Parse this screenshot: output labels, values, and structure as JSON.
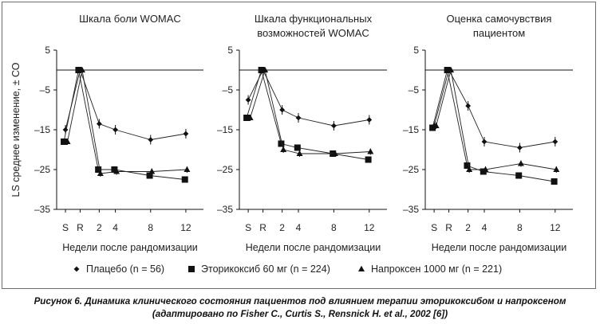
{
  "chart_data": [
    {
      "type": "line",
      "title_lines": [
        "Шкала боли WOMAC"
      ],
      "xlabel": "Недели после рандомизации",
      "ylabel": "LS среднее изменение, ± СО",
      "ylim": [
        -35,
        5
      ],
      "yticks": [
        "5",
        "–5",
        "–15",
        "–25",
        "–35"
      ],
      "xticks": [
        "S",
        "R",
        "2",
        "4",
        "8",
        "12"
      ],
      "reference_line_y": 0,
      "series": [
        {
          "key": "placebo",
          "marker": "diamond",
          "points": [
            {
              "x": "S",
              "y": -15
            },
            {
              "x": "R",
              "y": 0
            },
            {
              "x": "2",
              "y": -13.5
            },
            {
              "x": "4",
              "y": -15
            },
            {
              "x": "8",
              "y": -17.5
            },
            {
              "x": "12",
              "y": -16
            }
          ]
        },
        {
          "key": "etoricoxib",
          "marker": "square",
          "points": [
            {
              "x": "S",
              "y": -18
            },
            {
              "x": "R",
              "y": 0
            },
            {
              "x": "2",
              "y": -25
            },
            {
              "x": "4",
              "y": -25
            },
            {
              "x": "8",
              "y": -26.5
            },
            {
              "x": "12",
              "y": -27.5
            }
          ]
        },
        {
          "key": "naproxen",
          "marker": "triangle",
          "points": [
            {
              "x": "S",
              "y": -18
            },
            {
              "x": "R",
              "y": 0
            },
            {
              "x": "2",
              "y": -26
            },
            {
              "x": "4",
              "y": -25.5
            },
            {
              "x": "8",
              "y": -25.5
            },
            {
              "x": "12",
              "y": -25
            }
          ]
        }
      ]
    },
    {
      "type": "line",
      "title_lines": [
        "Шкала функциональных",
        "возможностей WOMAC"
      ],
      "xlabel": "Недели после рандомизации",
      "ylim": [
        -35,
        5
      ],
      "yticks": [
        "5",
        "–5",
        "–15",
        "–25",
        "–35"
      ],
      "xticks": [
        "S",
        "R",
        "2",
        "4",
        "8",
        "12"
      ],
      "reference_line_y": 0,
      "series": [
        {
          "key": "placebo",
          "marker": "diamond",
          "points": [
            {
              "x": "S",
              "y": -7.5
            },
            {
              "x": "R",
              "y": 0
            },
            {
              "x": "2",
              "y": -10
            },
            {
              "x": "4",
              "y": -12
            },
            {
              "x": "8",
              "y": -14
            },
            {
              "x": "12",
              "y": -12.5
            }
          ]
        },
        {
          "key": "etoricoxib",
          "marker": "square",
          "points": [
            {
              "x": "S",
              "y": -12
            },
            {
              "x": "R",
              "y": 0
            },
            {
              "x": "2",
              "y": -18.5
            },
            {
              "x": "4",
              "y": -19.5
            },
            {
              "x": "8",
              "y": -21
            },
            {
              "x": "12",
              "y": -22.5
            }
          ]
        },
        {
          "key": "naproxen",
          "marker": "triangle",
          "points": [
            {
              "x": "S",
              "y": -12
            },
            {
              "x": "R",
              "y": 0
            },
            {
              "x": "2",
              "y": -20
            },
            {
              "x": "4",
              "y": -21
            },
            {
              "x": "8",
              "y": -21
            },
            {
              "x": "12",
              "y": -20.5
            }
          ]
        }
      ]
    },
    {
      "type": "line",
      "title_lines": [
        "Оценка самочувствия",
        "пациентом"
      ],
      "xlabel": "Недели после рандомизации",
      "ylim": [
        -35,
        5
      ],
      "yticks": [
        "5",
        "–5",
        "–15",
        "–25",
        "–35"
      ],
      "xticks": [
        "S",
        "R",
        "2",
        "4",
        "8",
        "12"
      ],
      "reference_line_y": 0,
      "series": [
        {
          "key": "placebo",
          "marker": "diamond",
          "points": [
            {
              "x": "S",
              "y": -14
            },
            {
              "x": "R",
              "y": 0
            },
            {
              "x": "2",
              "y": -9
            },
            {
              "x": "4",
              "y": -18
            },
            {
              "x": "8",
              "y": -19.5
            },
            {
              "x": "12",
              "y": -18
            }
          ]
        },
        {
          "key": "etoricoxib",
          "marker": "square",
          "points": [
            {
              "x": "S",
              "y": -14.5
            },
            {
              "x": "R",
              "y": 0
            },
            {
              "x": "2",
              "y": -24
            },
            {
              "x": "4",
              "y": -25.5
            },
            {
              "x": "8",
              "y": -26.5
            },
            {
              "x": "12",
              "y": -28
            }
          ]
        },
        {
          "key": "naproxen",
          "marker": "triangle",
          "points": [
            {
              "x": "S",
              "y": -14
            },
            {
              "x": "R",
              "y": 0
            },
            {
              "x": "2",
              "y": -25
            },
            {
              "x": "4",
              "y": -25
            },
            {
              "x": "8",
              "y": -23.5
            },
            {
              "x": "12",
              "y": -25
            }
          ]
        }
      ]
    }
  ],
  "legend": {
    "placement": "bottom",
    "items": [
      {
        "key": "placebo",
        "marker": "diamond",
        "label": "Плацебо (n = 56)"
      },
      {
        "key": "etoricoxib",
        "marker": "square",
        "label": "Эторикоксиб 60 мг (n = 224)"
      },
      {
        "key": "naproxen",
        "marker": "triangle",
        "label": "Напроксен 1000 мг (n = 221)"
      }
    ]
  },
  "caption": "Рисунок 6. Динамика клинического состояния пациентов под влиянием терапии эторикоксибом и напроксеном (адаптировано по Fisher C., Curtis S., Rensnick H. et al., 2002 [6])"
}
